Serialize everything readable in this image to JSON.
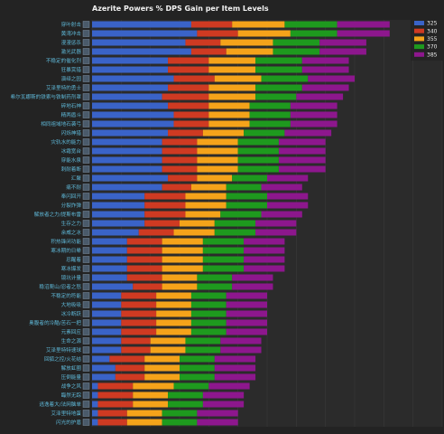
{
  "chart_data": {
    "type": "bar",
    "stacked": true,
    "orientation": "horizontal",
    "title": "Azerite Powers % DPS Gain per Item Levels",
    "xlabel": "",
    "ylabel": "",
    "grid": true,
    "legend_position": "top-right",
    "colors": {
      "325": "#3a63c8",
      "340": "#cf3a22",
      "355": "#f5a31a",
      "370": "#1e9a1e",
      "385": "#8d178d"
    },
    "categories": [
      "穿叶射击",
      "黄湾冲击",
      "漫漫惩杀",
      "激光武器",
      "不稳定的催化剂",
      "狂暴赏猎",
      "演绎之园",
      "艾泽里特的勇士",
      "希尔瓦娜斯的铁索与铁制药剂罩",
      "碎地石神",
      "精两盾斗",
      "相同祖域地石袭弓",
      "闪烁神猎",
      "灾轨水的能力",
      "冰霜宽台",
      "穿能水泉",
      "刺耐着断",
      "汇聚",
      "痛不耐",
      "奉闪回开",
      "分裂炸弹",
      "解放者之力/提斯布雷",
      "生存之力",
      "余威之冰",
      "积热锋闭功能",
      "寒冰期的日晕",
      "忍醒着",
      "寒冰爆发",
      "镜坑计量",
      "稳沼爬山/忍者之怒",
      "不稳定的符能",
      "大地吸吸",
      "冰冷断跃",
      "奥腹者的冷酷/苦石一把",
      "元素回应",
      "生命之源",
      "艾泽里特特速球",
      "回狐之控/火花结",
      "解放虹圈",
      "压倒能量",
      "战争之风",
      "臨然无踪",
      "逃逸着大/法网脑单",
      "艾泽里特地蛋",
      "闪光的护盾"
    ],
    "series": [
      {
        "name": "325",
        "values": [
          1.7,
          1.8,
          1.6,
          1.7,
          1.3,
          1.3,
          1.4,
          1.3,
          1.2,
          1.3,
          1.4,
          1.4,
          1.3,
          1.2,
          1.2,
          1.2,
          1.2,
          1.3,
          1.2,
          0.9,
          0.9,
          0.9,
          0.9,
          0.8,
          0.6,
          0.6,
          0.6,
          0.6,
          0.6,
          0.7,
          0.5,
          0.5,
          0.5,
          0.5,
          0.5,
          0.5,
          0.5,
          0.3,
          0.4,
          0.4,
          0.1,
          0.1,
          0.1,
          0.1,
          0.1
        ]
      },
      {
        "name": "340",
        "values": [
          0.7,
          0.7,
          0.6,
          0.6,
          0.7,
          0.7,
          0.7,
          0.7,
          0.8,
          0.7,
          0.6,
          0.6,
          0.6,
          0.6,
          0.6,
          0.6,
          0.6,
          0.5,
          0.5,
          0.7,
          0.7,
          0.7,
          0.6,
          0.6,
          0.6,
          0.6,
          0.6,
          0.6,
          0.6,
          0.5,
          0.6,
          0.6,
          0.6,
          0.6,
          0.6,
          0.5,
          0.5,
          0.6,
          0.5,
          0.5,
          0.6,
          0.6,
          0.6,
          0.5,
          0.5
        ]
      },
      {
        "name": "355",
        "values": [
          0.9,
          0.9,
          0.9,
          0.8,
          0.8,
          0.8,
          0.8,
          0.8,
          0.8,
          0.7,
          0.7,
          0.7,
          0.7,
          0.7,
          0.7,
          0.7,
          0.7,
          0.6,
          0.6,
          0.7,
          0.7,
          0.6,
          0.6,
          0.7,
          0.7,
          0.7,
          0.7,
          0.7,
          0.6,
          0.6,
          0.6,
          0.6,
          0.6,
          0.6,
          0.6,
          0.6,
          0.6,
          0.6,
          0.6,
          0.6,
          0.7,
          0.6,
          0.6,
          0.6,
          0.6
        ]
      },
      {
        "name": "370",
        "values": [
          0.9,
          0.8,
          0.8,
          0.8,
          0.8,
          0.8,
          0.8,
          0.8,
          0.7,
          0.7,
          0.7,
          0.7,
          0.7,
          0.7,
          0.7,
          0.7,
          0.7,
          0.6,
          0.6,
          0.7,
          0.7,
          0.7,
          0.7,
          0.7,
          0.7,
          0.7,
          0.7,
          0.7,
          0.6,
          0.6,
          0.6,
          0.6,
          0.6,
          0.6,
          0.6,
          0.6,
          0.6,
          0.6,
          0.6,
          0.6,
          0.6,
          0.6,
          0.6,
          0.6,
          0.6
        ]
      },
      {
        "name": "385",
        "values": [
          0.9,
          0.9,
          0.8,
          0.8,
          0.8,
          0.8,
          0.8,
          0.8,
          0.8,
          0.8,
          0.8,
          0.8,
          0.8,
          0.8,
          0.8,
          0.8,
          0.8,
          0.7,
          0.7,
          0.7,
          0.7,
          0.7,
          0.7,
          0.7,
          0.7,
          0.7,
          0.7,
          0.7,
          0.7,
          0.7,
          0.7,
          0.7,
          0.7,
          0.7,
          0.7,
          0.7,
          0.7,
          0.7,
          0.7,
          0.7,
          0.7,
          0.7,
          0.7,
          0.7,
          0.7
        ]
      }
    ],
    "xlim": [
      0,
      6
    ]
  }
}
